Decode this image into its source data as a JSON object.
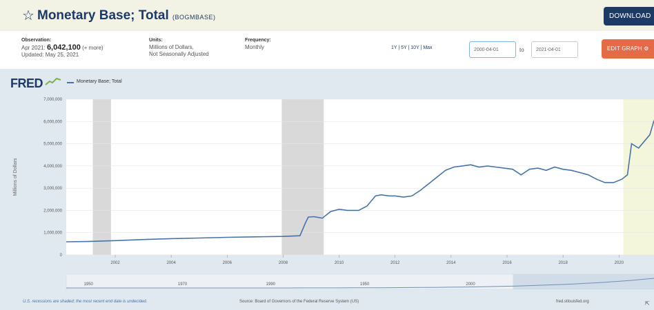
{
  "header": {
    "title": "Monetary Base; Total",
    "series_id": "(BOGMBASE)",
    "star_icon": "star-icon",
    "download_label": "DOWNLOAD ↓"
  },
  "meta": {
    "observation_head": "Observation:",
    "observation_date": "Apr 2021:",
    "observation_value": "6,042,100",
    "observation_more": "(+ more)",
    "updated": "Updated: May 25, 2021",
    "units_head": "Units:",
    "units_line1": "Millions of Dollars,",
    "units_line2": "Not Seasonally Adjusted",
    "frequency_head": "Frequency:",
    "frequency_value": "Monthly"
  },
  "controls": {
    "ranges": "1Y | 5Y | 10Y | Max",
    "date_from": "2000-04-01",
    "to_label": "to",
    "date_to": "2021-04-01",
    "edit_graph_label": "EDIT GRAPH ⚙"
  },
  "graph": {
    "logo": "FRED",
    "legend_label": "Monetary Base; Total",
    "footer_note": "U.S. recessions are shaded; the most recent end date is undecided.",
    "footer_source": "Source: Board of Governors of the Federal Reserve System (US)",
    "footer_site": "fred.stlouisfed.org",
    "fullscreen_icon": "fullscreen-icon"
  },
  "colors": {
    "header_bg": "#f2f3e4",
    "brand": "#1d3a66",
    "accent": "#e36b48",
    "line": "#4572a7",
    "recession": "#d9d9d9",
    "forecast": "#f4f6dc"
  },
  "chart_data": {
    "type": "line",
    "title": "",
    "xlabel": "",
    "ylabel": "Millions of Dollars",
    "ylim": [
      0,
      7000000
    ],
    "xlim": [
      2000.25,
      2021.25
    ],
    "y_ticks": [
      0,
      1000000,
      2000000,
      3000000,
      4000000,
      5000000,
      6000000,
      7000000
    ],
    "y_tick_labels": [
      "0",
      "1,000,000",
      "2,000,000",
      "3,000,000",
      "4,000,000",
      "5,000,000",
      "6,000,000",
      "7,000,000"
    ],
    "x_ticks": [
      2002,
      2004,
      2006,
      2008,
      2010,
      2012,
      2014,
      2016,
      2018,
      2020
    ],
    "x_tick_labels": [
      "2002",
      "2004",
      "2006",
      "2008",
      "2010",
      "2012",
      "2014",
      "2016",
      "2018",
      "2020"
    ],
    "grid": true,
    "recessions": [
      [
        2001.2,
        2001.85
      ],
      [
        2007.95,
        2009.45
      ],
      [
        2020.15,
        2021.25
      ]
    ],
    "series": [
      {
        "name": "Monetary Base; Total",
        "x": [
          2000.25,
          2001.0,
          2002.0,
          2003.0,
          2004.0,
          2005.0,
          2006.0,
          2007.0,
          2008.0,
          2008.6,
          2008.8,
          2008.9,
          2009.1,
          2009.4,
          2009.7,
          2010.0,
          2010.3,
          2010.7,
          2011.0,
          2011.3,
          2011.5,
          2011.8,
          2012.0,
          2012.3,
          2012.6,
          2012.9,
          2013.2,
          2013.5,
          2013.8,
          2014.1,
          2014.4,
          2014.7,
          2015.0,
          2015.3,
          2015.6,
          2015.9,
          2016.2,
          2016.5,
          2016.8,
          2017.1,
          2017.4,
          2017.7,
          2018.0,
          2018.3,
          2018.6,
          2018.9,
          2019.2,
          2019.5,
          2019.8,
          2020.1,
          2020.3,
          2020.45,
          2020.7,
          2020.9,
          2021.1,
          2021.25
        ],
        "values": [
          590000,
          600000,
          640000,
          690000,
          730000,
          760000,
          790000,
          810000,
          830000,
          860000,
          1450000,
          1700000,
          1720000,
          1650000,
          1950000,
          2050000,
          2000000,
          2000000,
          2200000,
          2650000,
          2700000,
          2650000,
          2650000,
          2600000,
          2650000,
          2900000,
          3200000,
          3500000,
          3800000,
          3950000,
          4000000,
          4050000,
          3950000,
          4000000,
          3950000,
          3900000,
          3850000,
          3600000,
          3850000,
          3900000,
          3800000,
          3950000,
          3850000,
          3800000,
          3700000,
          3600000,
          3400000,
          3250000,
          3250000,
          3400000,
          3600000,
          5000000,
          4800000,
          5100000,
          5400000,
          6042100
        ]
      }
    ]
  },
  "navigator": {
    "labels": [
      "1950",
      "1970",
      "1990",
      "1950",
      "2000"
    ],
    "selection": [
      0.76,
      1.0
    ]
  }
}
